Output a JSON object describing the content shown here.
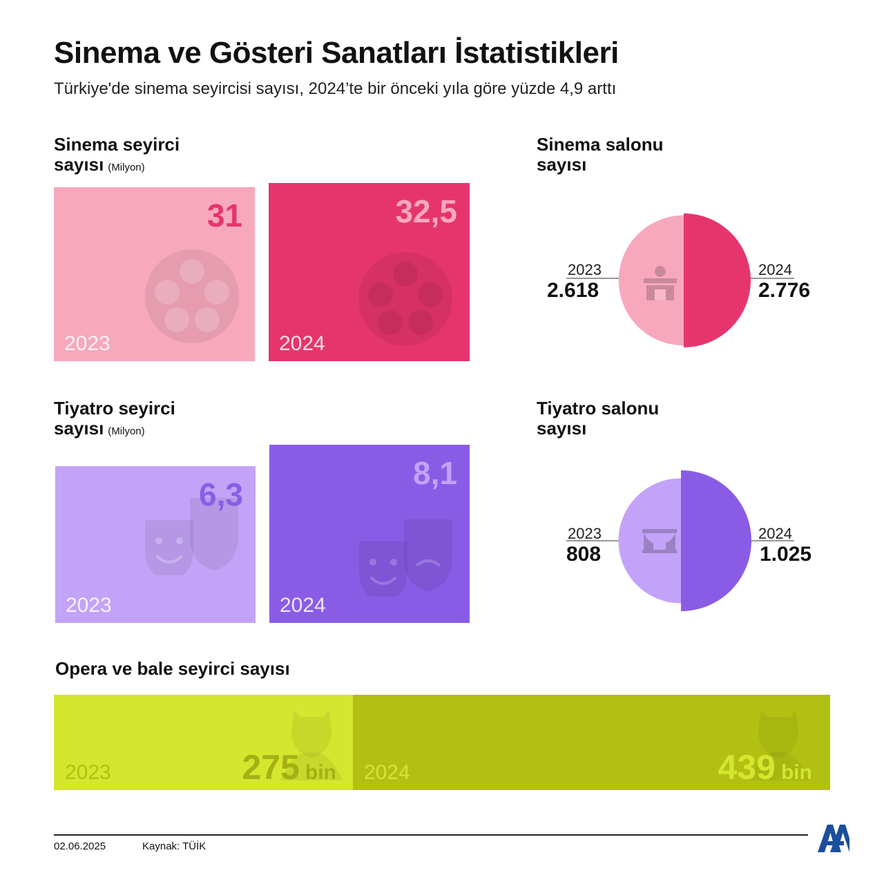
{
  "title": "Sinema ve Gösteri Sanatları İstatistikleri",
  "subtitle": "Türkiye'de sinema seyircisi sayısı, 2024’te bir önceki yıla göre yüzde 4,9 arttı",
  "colors": {
    "sinema_2023": "#f7a8bd",
    "sinema_2024": "#e6356d",
    "tiyatro_2023": "#c3a3f7",
    "tiyatro_2024": "#8a5ce6",
    "opera_2023": "#d4e62e",
    "opera_2024": "#b2c014"
  },
  "chart_data": [
    {
      "type": "bar",
      "title_line1": "Sinema seyirci",
      "title_line2": "sayısı",
      "unit": "(Milyon)",
      "categories": [
        "2023",
        "2024"
      ],
      "values": [
        31,
        32.5
      ],
      "value_labels": [
        "31",
        "32,5"
      ],
      "icon": "film-reel-icon"
    },
    {
      "type": "pie",
      "title_line1": "Sinema salonu",
      "title_line2": "sayısı",
      "categories": [
        "2023",
        "2024"
      ],
      "values": [
        2618,
        2776
      ],
      "value_labels": [
        "2.618",
        "2.776"
      ],
      "icon": "cinema-building-icon"
    },
    {
      "type": "bar",
      "title_line1": "Tiyatro seyirci",
      "title_line2": "sayısı",
      "unit": "(Milyon)",
      "categories": [
        "2023",
        "2024"
      ],
      "values": [
        6.3,
        8.1
      ],
      "value_labels": [
        "6,3",
        "8,1"
      ],
      "icon": "theater-masks-icon"
    },
    {
      "type": "pie",
      "title_line1": "Tiyatro salonu",
      "title_line2": "sayısı",
      "categories": [
        "2023",
        "2024"
      ],
      "values": [
        808,
        1025
      ],
      "value_labels": [
        "808",
        "1.025"
      ],
      "icon": "stage-curtain-icon"
    },
    {
      "type": "bar",
      "title": "Opera ve bale seyirci sayısı",
      "categories": [
        "2023",
        "2024"
      ],
      "values": [
        275,
        439
      ],
      "value_labels": [
        "275",
        "439"
      ],
      "unit_suffix": "bin",
      "icon": "ballet-dancer-icon"
    }
  ],
  "footer": {
    "date": "02.06.2025",
    "source": "Kaynak: TÜİK",
    "logo_text": "AA"
  }
}
